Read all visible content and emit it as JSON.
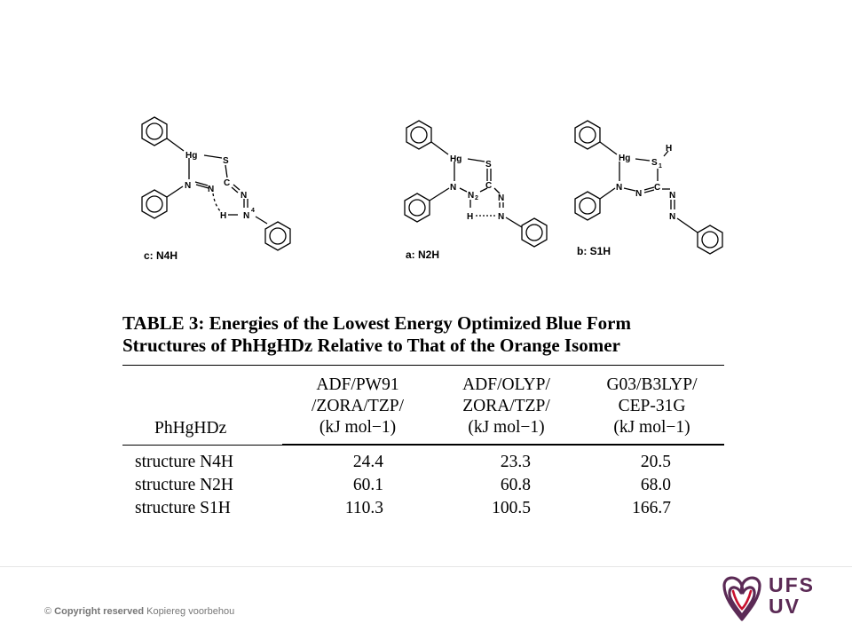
{
  "structures": [
    {
      "caption": "c: N4H",
      "atoms": {
        "hg": "Hg",
        "s": "S",
        "c": "C",
        "n_a": "N",
        "n_b": "N",
        "n_c": "N",
        "n_d": "N",
        "h": "H",
        "sup4": "4"
      }
    },
    {
      "caption": "a: N2H",
      "atoms": {
        "hg": "Hg",
        "s": "S",
        "c": "C",
        "n_a": "N",
        "n_b": "N",
        "sub2": "2",
        "n_c": "N",
        "n_d": "N",
        "h": "H"
      }
    },
    {
      "caption": "b: S1H",
      "atoms": {
        "hg": "Hg",
        "s": "S",
        "sub1": "1",
        "h": "H",
        "c": "C",
        "n_a": "N",
        "n_b": "N",
        "n_c": "N",
        "n_d": "N"
      }
    }
  ],
  "table": {
    "title": "TABLE 3:  Energies of the Lowest Energy Optimized Blue Form Structures of PhHgHDz Relative to That of the Orange Isomer",
    "row_header": "PhHgHDz",
    "columns": [
      {
        "line1": "ADF/PW91",
        "line2": "/ZORA/TZP/",
        "line3": "(kJ mol−1)"
      },
      {
        "line1": "ADF/OLYP/",
        "line2": "ZORA/TZP/",
        "line3": "(kJ mol−1)"
      },
      {
        "line1": "G03/B3LYP/",
        "line2": "CEP-31G",
        "line3": "(kJ mol−1)"
      }
    ],
    "rows": [
      {
        "label": "structure N4H",
        "values": [
          "24.4",
          "23.3",
          "20.5"
        ]
      },
      {
        "label": "structure N2H",
        "values": [
          "60.1",
          "60.8",
          "68.0"
        ]
      },
      {
        "label": "structure S1H",
        "values": [
          "110.3",
          "100.5",
          "166.7"
        ]
      }
    ]
  },
  "footer": {
    "copyright_symbol": "©",
    "copyright_bold": "Copyright reserved",
    "copyright_rest": "Kopiereg voorbehou",
    "logo_line1": "UFS",
    "logo_line2": "UV",
    "brand_color": "#5b2a55",
    "brand_red": "#c8102e"
  }
}
